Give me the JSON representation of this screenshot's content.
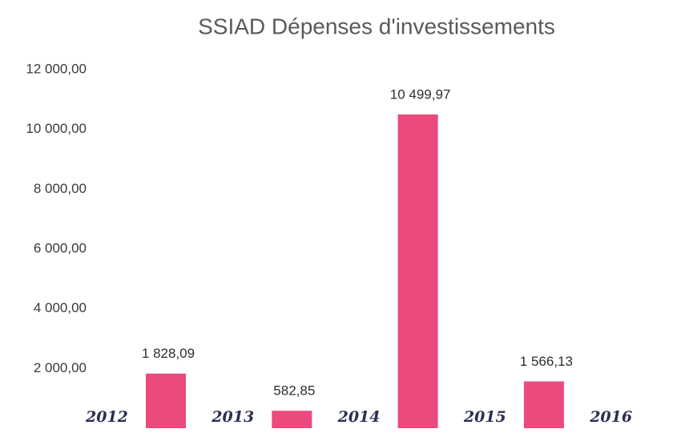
{
  "chart_data": {
    "type": "bar",
    "title": "SSIAD Dépenses d'investissements",
    "categories": [
      "2012",
      "2013",
      "2014",
      "2015",
      "2016"
    ],
    "values": [
      1828.09,
      582.85,
      10499.97,
      1566.13,
      null
    ],
    "value_labels": [
      "1 828,09",
      "582,85",
      "10 499,97",
      "1 566,13",
      null
    ],
    "color": "#ec4a7c",
    "ylim": [
      0,
      12000
    ],
    "yticks": [
      {
        "value": 2000,
        "label": "2 000,00"
      },
      {
        "value": 4000,
        "label": "4 000,00"
      },
      {
        "value": 6000,
        "label": "6 000,00"
      },
      {
        "value": 8000,
        "label": "8 000,00"
      },
      {
        "value": 10000,
        "label": "10 000,00"
      },
      {
        "value": 12000,
        "label": "12 000,00"
      }
    ],
    "grid": false
  }
}
